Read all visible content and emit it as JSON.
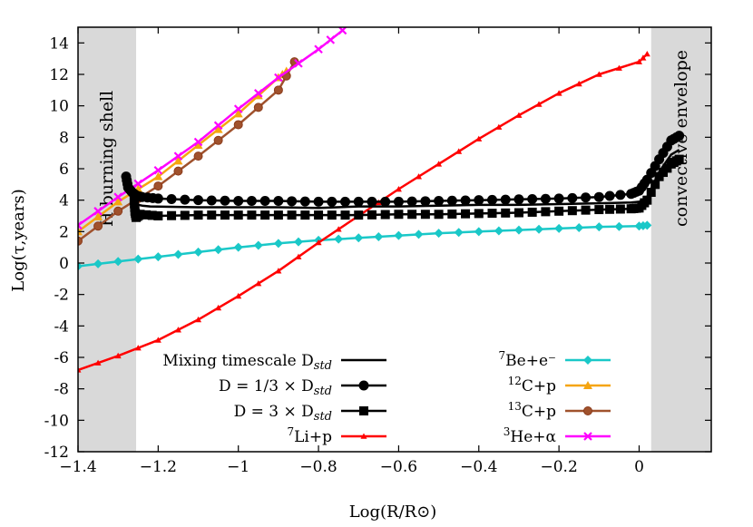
{
  "chart_data": {
    "type": "line",
    "title": "",
    "xlabel": "Log(R/R⊙)",
    "ylabel": "Log(τ,years)",
    "xlim": [
      -1.4,
      0.18
    ],
    "ylim": [
      -12,
      15
    ],
    "xticks": [
      -1.4,
      -1.2,
      -1.0,
      -0.8,
      -0.6,
      -0.4,
      -0.2,
      0.0
    ],
    "xtick_labels": [
      "−1.4",
      "−1.2",
      "−1",
      "−0.8",
      "−0.6",
      "−0.4",
      "−0.2",
      "0"
    ],
    "yticks": [
      -12,
      -10,
      -8,
      -6,
      -4,
      -2,
      0,
      2,
      4,
      6,
      8,
      10,
      12,
      14
    ],
    "ytick_labels": [
      "-12",
      "-10",
      "-8",
      "-6",
      "-4",
      "-2",
      "0",
      "2",
      "4",
      "6",
      "8",
      "10",
      "12",
      "14"
    ],
    "grid": false,
    "shaded_regions": [
      {
        "x0": -1.4,
        "x1": -1.255,
        "label": "H burning shell",
        "color": "#d9d9d9"
      },
      {
        "x0": 0.03,
        "x1": 0.18,
        "label": "convective envelope",
        "color": "#d9d9d9"
      }
    ],
    "legend_placement": "bottom-center",
    "series": [
      {
        "name": "Mixing timescale D",
        "name_sub": "std",
        "color": "#000000",
        "marker": "none",
        "width": 2.5,
        "x": [
          -1.27,
          -1.262,
          -1.255,
          -1.25,
          -1.24,
          -1.22,
          -1.1,
          -1.0,
          -0.9,
          -0.8,
          -0.7,
          -0.6,
          -0.5,
          -0.4,
          -0.3,
          -0.2,
          -0.1,
          -0.02,
          0.0,
          0.02,
          0.05,
          0.08,
          0.1
        ],
        "y": [
          4.7,
          4.3,
          3.8,
          3.7,
          3.65,
          3.6,
          3.55,
          3.55,
          3.55,
          3.5,
          3.6,
          3.6,
          3.65,
          3.7,
          3.7,
          3.75,
          3.8,
          3.85,
          3.9,
          4.2,
          5.8,
          6.9,
          7.2
        ]
      },
      {
        "name": "D = 1/3 × D",
        "name_sub": "std",
        "color": "#000000",
        "marker": "circle",
        "width": 2.5,
        "x": [
          -1.28,
          -1.275,
          -1.265,
          -1.255,
          -1.25,
          -1.24,
          -1.2,
          -1.1,
          -1.0,
          -0.9,
          -0.8,
          -0.7,
          -0.6,
          -0.5,
          -0.4,
          -0.3,
          -0.2,
          -0.1,
          -0.02,
          0.0,
          0.02,
          0.05,
          0.08,
          0.1
        ],
        "y": [
          5.5,
          4.8,
          4.5,
          4.3,
          4.25,
          4.2,
          4.1,
          4.0,
          3.95,
          3.95,
          3.9,
          3.9,
          3.9,
          3.95,
          4.0,
          4.05,
          4.1,
          4.2,
          4.4,
          4.6,
          5.3,
          6.6,
          7.8,
          8.1
        ]
      },
      {
        "name": "D = 3 × D",
        "name_sub": "std",
        "color": "#000000",
        "marker": "square",
        "width": 2.5,
        "x": [
          -1.26,
          -1.258,
          -1.255,
          -1.245,
          -1.2,
          -1.1,
          -1.0,
          -0.9,
          -0.8,
          -0.7,
          -0.6,
          -0.5,
          -0.4,
          -0.3,
          -0.2,
          -0.1,
          -0.02,
          0.0,
          0.02,
          0.05,
          0.08,
          0.1
        ],
        "y": [
          4.0,
          3.3,
          2.9,
          3.1,
          3.0,
          3.05,
          3.05,
          3.05,
          3.05,
          3.05,
          3.1,
          3.1,
          3.15,
          3.2,
          3.3,
          3.4,
          3.45,
          3.5,
          4.0,
          5.5,
          6.3,
          6.6
        ]
      },
      {
        "name": "Li+p",
        "name_sup": "7",
        "color": "#ff0000",
        "marker": "tri",
        "width": 2.5,
        "x": [
          -1.4,
          -1.3,
          -1.2,
          -1.1,
          -1.0,
          -0.9,
          -0.8,
          -0.7,
          -0.6,
          -0.5,
          -0.4,
          -0.3,
          -0.2,
          -0.1,
          0.0,
          0.02
        ],
        "y": [
          -6.8,
          -5.9,
          -4.9,
          -3.6,
          -2.1,
          -0.5,
          1.3,
          3.0,
          4.7,
          6.3,
          7.9,
          9.4,
          10.8,
          12.0,
          12.8,
          13.3
        ]
      },
      {
        "name": "Be+e⁻",
        "name_sup": "7",
        "color": "#1ac8c8",
        "marker": "diamond",
        "width": 2.5,
        "x": [
          -1.4,
          -1.3,
          -1.2,
          -1.1,
          -1.0,
          -0.9,
          -0.8,
          -0.7,
          -0.6,
          -0.5,
          -0.4,
          -0.3,
          -0.2,
          -0.1,
          0.0,
          0.02
        ],
        "y": [
          -0.2,
          0.1,
          0.4,
          0.7,
          1.0,
          1.25,
          1.45,
          1.6,
          1.75,
          1.9,
          2.0,
          2.1,
          2.2,
          2.3,
          2.35,
          2.4
        ]
      },
      {
        "name": "C+p",
        "name_sup": "12",
        "color": "#f5a511",
        "marker": "tri",
        "width": 2.5,
        "x": [
          -1.4,
          -1.3,
          -1.2,
          -1.1,
          -1.0,
          -0.9,
          -0.88
        ],
        "y": [
          2.0,
          3.9,
          5.5,
          7.5,
          9.5,
          11.8,
          12.2
        ]
      },
      {
        "name": "C+p",
        "name_sup": "13",
        "color": "#a0522d",
        "marker": "circle-small",
        "width": 2.5,
        "x": [
          -1.4,
          -1.3,
          -1.2,
          -1.1,
          -1.0,
          -0.9,
          -0.86
        ],
        "y": [
          1.4,
          3.3,
          4.9,
          6.8,
          8.8,
          11.0,
          12.8
        ]
      },
      {
        "name": "He+α",
        "name_sup": "3",
        "color": "#ff00ff",
        "marker": "cross",
        "width": 2.5,
        "x": [
          -1.4,
          -1.3,
          -1.2,
          -1.1,
          -1.0,
          -0.9,
          -0.8,
          -0.74
        ],
        "y": [
          2.4,
          4.2,
          5.9,
          7.7,
          9.8,
          11.8,
          13.6,
          14.8
        ]
      }
    ]
  }
}
